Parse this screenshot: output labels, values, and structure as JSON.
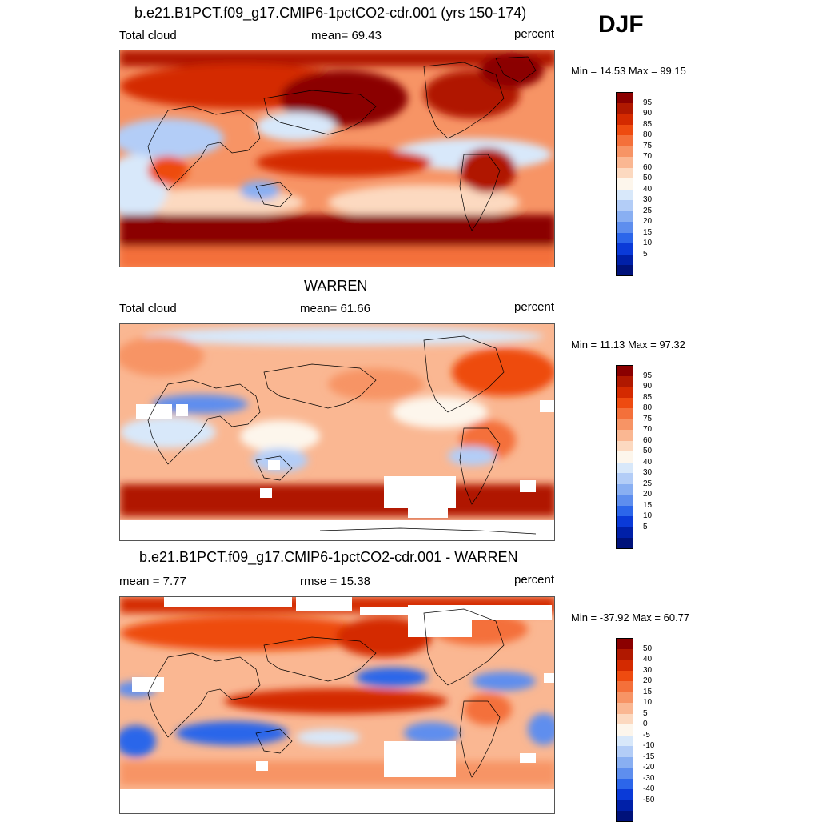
{
  "season": "DJF",
  "panels": [
    {
      "title": "b.e21.B1PCT.f09_g17.CMIP6-1pctCO2-cdr.001 (yrs 150-174)",
      "left_label": "Total cloud",
      "center_label": "mean=  69.43",
      "right_label": "percent",
      "minmax": "Min =  14.53 Max =  99.15",
      "colorbar": {
        "labels": [
          "95",
          "90",
          "85",
          "80",
          "75",
          "70",
          "60",
          "50",
          "40",
          "30",
          "25",
          "20",
          "15",
          "10",
          "5"
        ],
        "colors": [
          "#8b0000",
          "#b01800",
          "#d42a00",
          "#ee4b10",
          "#f4703a",
          "#f79465",
          "#fab792",
          "#fcd9c0",
          "#fdf6ec",
          "#d8e8fa",
          "#b3cdf7",
          "#89aff2",
          "#5e8eee",
          "#2c66ea",
          "#0a3ad8",
          "#0020a8",
          "#00127a"
        ]
      }
    },
    {
      "title": "WARREN",
      "left_label": "Total cloud",
      "center_label": "mean=  61.66",
      "right_label": "percent",
      "minmax": "Min =  11.13 Max =  97.32",
      "colorbar": {
        "labels": [
          "95",
          "90",
          "85",
          "80",
          "75",
          "70",
          "60",
          "50",
          "40",
          "30",
          "25",
          "20",
          "15",
          "10",
          "5"
        ],
        "colors": [
          "#8b0000",
          "#b01800",
          "#d42a00",
          "#ee4b10",
          "#f4703a",
          "#f79465",
          "#fab792",
          "#fcd9c0",
          "#fdf6ec",
          "#d8e8fa",
          "#b3cdf7",
          "#89aff2",
          "#5e8eee",
          "#2c66ea",
          "#0a3ad8",
          "#0020a8",
          "#00127a"
        ]
      }
    },
    {
      "title": "b.e21.B1PCT.f09_g17.CMIP6-1pctCO2-cdr.001 - WARREN",
      "left_label": "mean =   7.77",
      "center_label": "rmse =  15.38",
      "right_label": "percent",
      "minmax": "Min = -37.92 Max =  60.77",
      "colorbar": {
        "labels": [
          "50",
          "40",
          "30",
          "20",
          "15",
          "10",
          "5",
          "0",
          "-5",
          "-10",
          "-15",
          "-20",
          "-30",
          "-40",
          "-50"
        ],
        "colors": [
          "#8b0000",
          "#b01800",
          "#d42a00",
          "#ee4b10",
          "#f4703a",
          "#f79465",
          "#fab792",
          "#fcd9c0",
          "#fdf6ec",
          "#d8e8fa",
          "#b3cdf7",
          "#89aff2",
          "#5e8eee",
          "#2c66ea",
          "#0a3ad8",
          "#0020a8",
          "#00127a"
        ]
      }
    }
  ]
}
